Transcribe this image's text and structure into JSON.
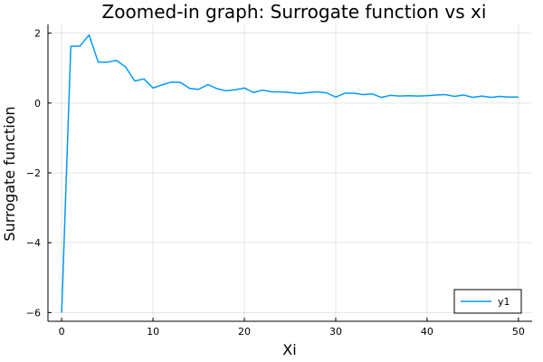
{
  "chart_data": {
    "type": "line",
    "title": "Zoomed-in graph: Surrogate function vs xi",
    "xlabel": "Xi",
    "ylabel": "Surrogate function",
    "xlim": [
      -1.5,
      51.5
    ],
    "ylim": [
      -6.25,
      2.25
    ],
    "xticks": [
      0,
      10,
      20,
      30,
      40,
      50
    ],
    "xtick_labels": [
      "0",
      "10",
      "20",
      "30",
      "40",
      "50"
    ],
    "yticks": [
      -6,
      -4,
      -2,
      0,
      2
    ],
    "ytick_labels": [
      "−6",
      "−4",
      "−2",
      "0",
      "2"
    ],
    "grid": true,
    "legend_position": "bottom-right",
    "series": [
      {
        "name": "y1",
        "color": "#009AFA",
        "x": [
          0,
          1,
          2,
          3,
          4,
          5,
          6,
          7,
          8,
          9,
          10,
          11,
          12,
          13,
          14,
          15,
          16,
          17,
          18,
          19,
          20,
          21,
          22,
          23,
          24,
          25,
          26,
          27,
          28,
          29,
          30,
          31,
          32,
          33,
          34,
          35,
          36,
          37,
          38,
          39,
          40,
          41,
          42,
          43,
          44,
          45,
          46,
          47,
          48,
          49,
          50
        ],
        "y": [
          -6.0,
          1.62,
          1.63,
          1.95,
          1.17,
          1.17,
          1.22,
          1.03,
          0.63,
          0.69,
          0.43,
          0.52,
          0.6,
          0.59,
          0.42,
          0.39,
          0.53,
          0.41,
          0.35,
          0.38,
          0.43,
          0.3,
          0.37,
          0.32,
          0.32,
          0.3,
          0.27,
          0.3,
          0.32,
          0.29,
          0.17,
          0.28,
          0.28,
          0.24,
          0.26,
          0.16,
          0.22,
          0.2,
          0.21,
          0.2,
          0.21,
          0.23,
          0.24,
          0.19,
          0.23,
          0.16,
          0.2,
          0.16,
          0.19,
          0.17,
          0.17
        ]
      }
    ]
  }
}
